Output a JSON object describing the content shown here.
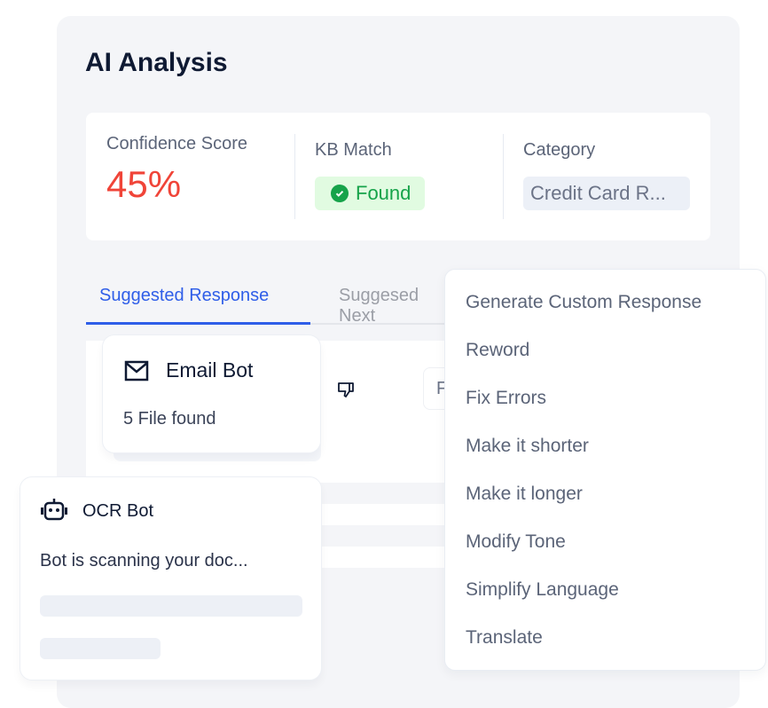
{
  "panel": {
    "title": "AI Analysis"
  },
  "metrics": {
    "confidence": {
      "label": "Confidence Score",
      "value": "45%",
      "color": "#f04438"
    },
    "kb_match": {
      "label": "KB Match",
      "status": "Found",
      "icon": "check-circle-icon",
      "color": "#16a34a"
    },
    "category": {
      "label": "Category",
      "value": "Credit Card R..."
    }
  },
  "tabs": [
    {
      "label": "Suggested Response",
      "active": true
    },
    {
      "label": "Suggesed Next",
      "active": false
    }
  ],
  "content": {
    "pill_text": "F",
    "icons": [
      "thumbs-down-icon"
    ]
  },
  "email_bot": {
    "title": "Email Bot",
    "icon": "mail-icon",
    "status": "5 File found"
  },
  "ocr_bot": {
    "title": "OCR Bot",
    "icon": "robot-icon",
    "status": "Bot is scanning your doc..."
  },
  "menu": {
    "items": [
      "Generate Custom Response",
      "Reword",
      "Fix Errors",
      "Make it shorter",
      "Make it longer",
      "Modify Tone",
      "Simplify Language",
      "Translate"
    ]
  },
  "colors": {
    "accent": "#2f5ee8",
    "panel_bg": "#f4f5f8"
  }
}
